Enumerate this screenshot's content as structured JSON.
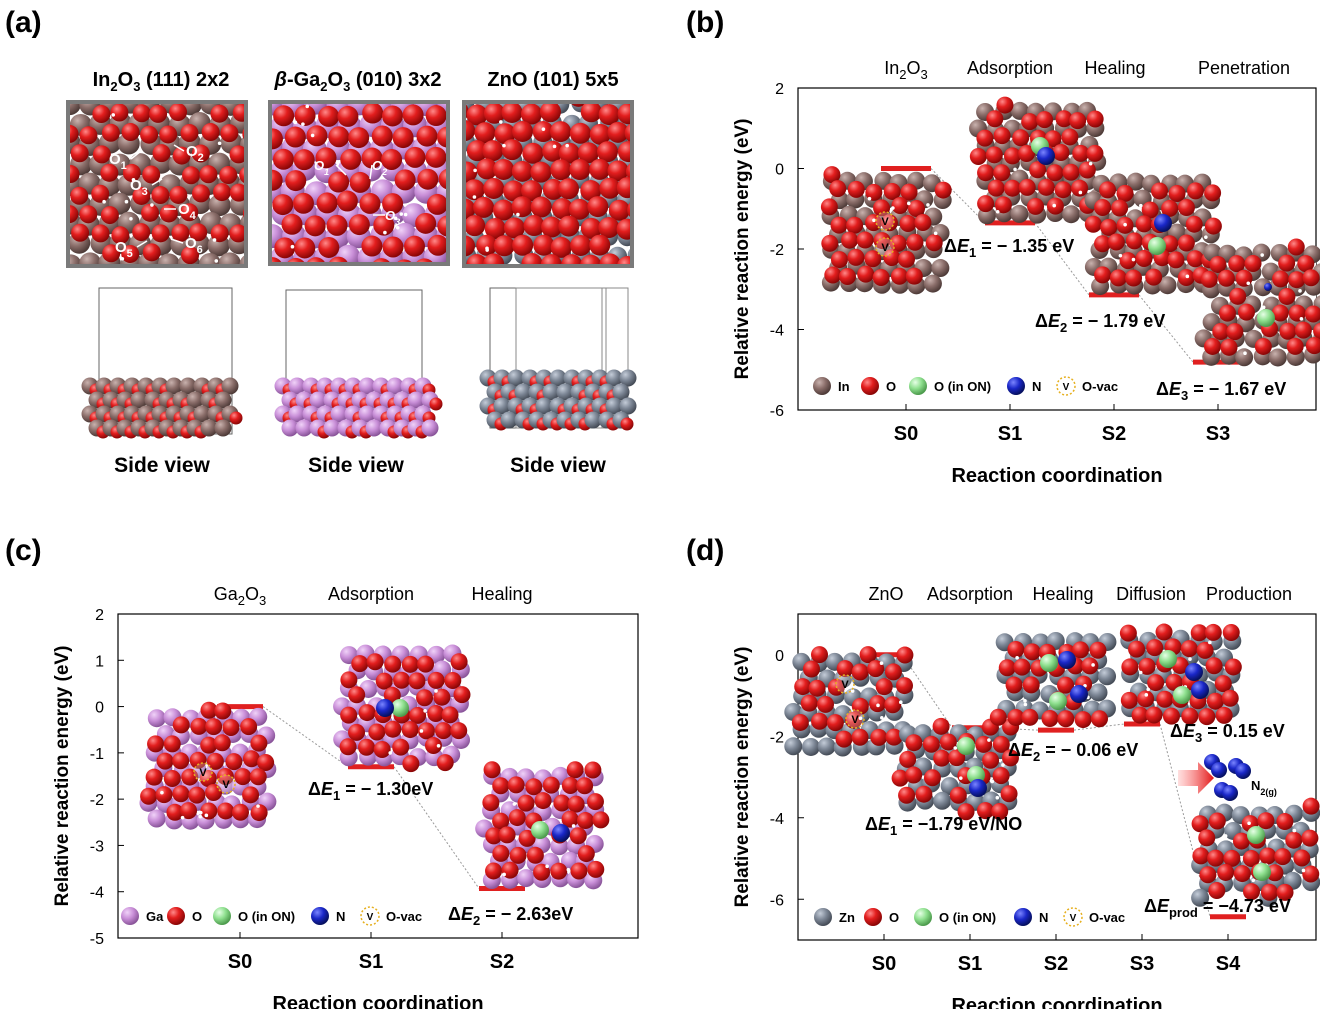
{
  "colors": {
    "level": "#e02020",
    "connector": "#aaaaaa",
    "O": "#d41818",
    "In": "#8b6e6a",
    "Ga": "#c98fd8",
    "Zn": "#7d8796",
    "O_in_ON": "#8fe08f",
    "N": "#1a27c8",
    "vac": "#e6b020"
  },
  "panel_a": {
    "label": "(a)",
    "titles": [
      {
        "main": "In",
        "sub": "2",
        "main2": "O",
        "sub2": "3",
        "rest": " (111) 2x2"
      },
      {
        "prefix": "β",
        "main": "-Ga",
        "sub": "2",
        "main2": "O",
        "sub2": "3",
        "rest": " (010) 3x2"
      },
      {
        "prefix": "",
        "main": "ZnO (101) 5x5",
        "sub": "",
        "main2": "",
        "sub2": "",
        "rest": ""
      }
    ],
    "in2o3_site_labels": [
      "O",
      "O",
      "O",
      "O",
      "O",
      "O"
    ],
    "in2o3_site_subs": [
      "1",
      "2",
      "3",
      "4",
      "5",
      "6"
    ],
    "ga2o3_site_labels": [
      "O",
      "O",
      "O"
    ],
    "ga2o3_site_subs": [
      "1",
      "2",
      "3"
    ],
    "side_view_label": "Side view"
  },
  "chart_data": [
    {
      "panel": "(b)",
      "type": "line",
      "top_labels": [
        {
          "main": "In",
          "sub": "2",
          "main2": "O",
          "sub2": "3"
        },
        {
          "main": "Adsorption"
        },
        {
          "main": "Healing"
        },
        {
          "main": "Penetration"
        }
      ],
      "categories": [
        "S0",
        "S1",
        "S2",
        "S3"
      ],
      "values": [
        0,
        -1.35,
        -3.14,
        -4.81
      ],
      "ylim": [
        -6,
        2
      ],
      "yticks": [
        "2",
        "0",
        "-2",
        "-4",
        "-6"
      ],
      "xlabel": "Reaction coordination",
      "ylabel": "Relative reaction energy (eV)",
      "annotations": [
        {
          "pre": "ΔE",
          "sub": "1",
          "post": " = − 1.35  eV"
        },
        {
          "pre": "ΔE",
          "sub": "2",
          "post": " = − 1.79  eV"
        },
        {
          "pre": "ΔE",
          "sub": "3",
          "post": " = − 1.67  eV"
        }
      ],
      "legend": [
        "In",
        "O",
        "O (in ON)",
        "N",
        "O-vac"
      ],
      "vac_symbol": "V"
    },
    {
      "panel": "(c)",
      "type": "line",
      "top_labels": [
        {
          "main": "Ga",
          "sub": "2",
          "main2": "O",
          "sub2": "3"
        },
        {
          "main": "Adsorption"
        },
        {
          "main": "Healing"
        }
      ],
      "categories": [
        "S0",
        "S1",
        "S2"
      ],
      "values": [
        0,
        -1.3,
        -3.93
      ],
      "ylim": [
        -5,
        2
      ],
      "yticks": [
        "2",
        "1",
        "0",
        "-1",
        "-2",
        "-3",
        "-4",
        "-5"
      ],
      "xlabel": "Reaction coordination",
      "ylabel": "Relative reaction energy (eV)",
      "annotations": [
        {
          "pre": "ΔE",
          "sub": "1",
          "post": " = − 1.30eV"
        },
        {
          "pre": "ΔE",
          "sub": "2",
          "post": " = − 2.63eV"
        }
      ],
      "legend": [
        "Ga",
        "O",
        "O (in ON)",
        "N",
        "O-vac"
      ],
      "vac_symbol": "V"
    },
    {
      "panel": "(d)",
      "type": "line",
      "top_labels": [
        {
          "main": "ZnO"
        },
        {
          "main": "Adsorption"
        },
        {
          "main": "Healing"
        },
        {
          "main": "Diffusion"
        },
        {
          "main": "Production"
        }
      ],
      "categories": [
        "S0",
        "S1",
        "S2",
        "S3",
        "S4"
      ],
      "values": [
        0,
        -1.79,
        -1.85,
        -1.7,
        -6.43
      ],
      "ylim": [
        -7,
        1
      ],
      "yticks": [
        "0",
        "-2",
        "-4",
        "-6"
      ],
      "xlabel": "Reaction coordination",
      "ylabel": "Relative reaction energy (eV)",
      "annotations": [
        {
          "pre": "ΔE",
          "sub": "1",
          "post": " = −1.79 eV/NO"
        },
        {
          "pre": "ΔE",
          "sub": "2",
          "post": " = − 0.06 eV"
        },
        {
          "pre": "ΔE",
          "sub": "3",
          "post": " = 0.15 eV"
        },
        {
          "pre": "ΔE",
          "sub": "prod",
          "post": " = −4.73 eV"
        }
      ],
      "product_label": {
        "main": "N",
        "sub": "2(g)"
      },
      "legend": [
        "Zn",
        "O",
        "O (in ON)",
        "N",
        "O-vac"
      ],
      "vac_symbol": "V"
    }
  ]
}
